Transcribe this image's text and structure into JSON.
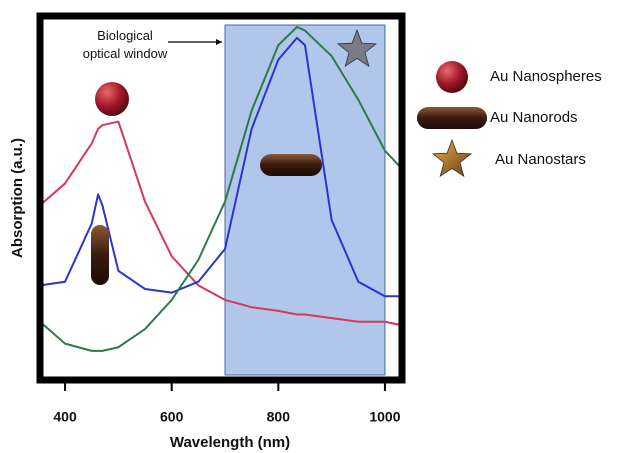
{
  "chart_data": {
    "type": "line",
    "xlabel": "Wavelength (nm)",
    "ylabel": "Absorption (a.u.)",
    "x": [
      353,
      400,
      450,
      462,
      470,
      500,
      550,
      600,
      650,
      700,
      750,
      800,
      835,
      850,
      900,
      950,
      1000,
      1032
    ],
    "series": [
      {
        "name": "Au Nanospheres",
        "color": "#d6375a",
        "values": [
          0.48,
          0.54,
          0.65,
          0.69,
          0.7,
          0.71,
          0.49,
          0.34,
          0.26,
          0.22,
          0.2,
          0.19,
          0.18,
          0.18,
          0.17,
          0.16,
          0.16,
          0.15
        ]
      },
      {
        "name": "Au Nanorods",
        "color": "#2a35d0",
        "values": [
          0.26,
          0.27,
          0.43,
          0.51,
          0.48,
          0.3,
          0.25,
          0.24,
          0.27,
          0.36,
          0.69,
          0.88,
          0.94,
          0.92,
          0.44,
          0.27,
          0.23,
          0.23
        ]
      },
      {
        "name": "Au Nanostars",
        "color": "#2e7a4a",
        "values": [
          0.16,
          0.1,
          0.08,
          0.08,
          0.08,
          0.09,
          0.14,
          0.22,
          0.33,
          0.49,
          0.74,
          0.92,
          0.97,
          0.96,
          0.89,
          0.77,
          0.63,
          0.58
        ]
      }
    ],
    "xlim": [
      353,
      1032
    ],
    "xticks": [
      400,
      600,
      800,
      1000
    ],
    "ylim": [
      0,
      1
    ],
    "window": [
      700,
      1000
    ],
    "window_label": [
      "Biological",
      "optical window"
    ]
  }
}
